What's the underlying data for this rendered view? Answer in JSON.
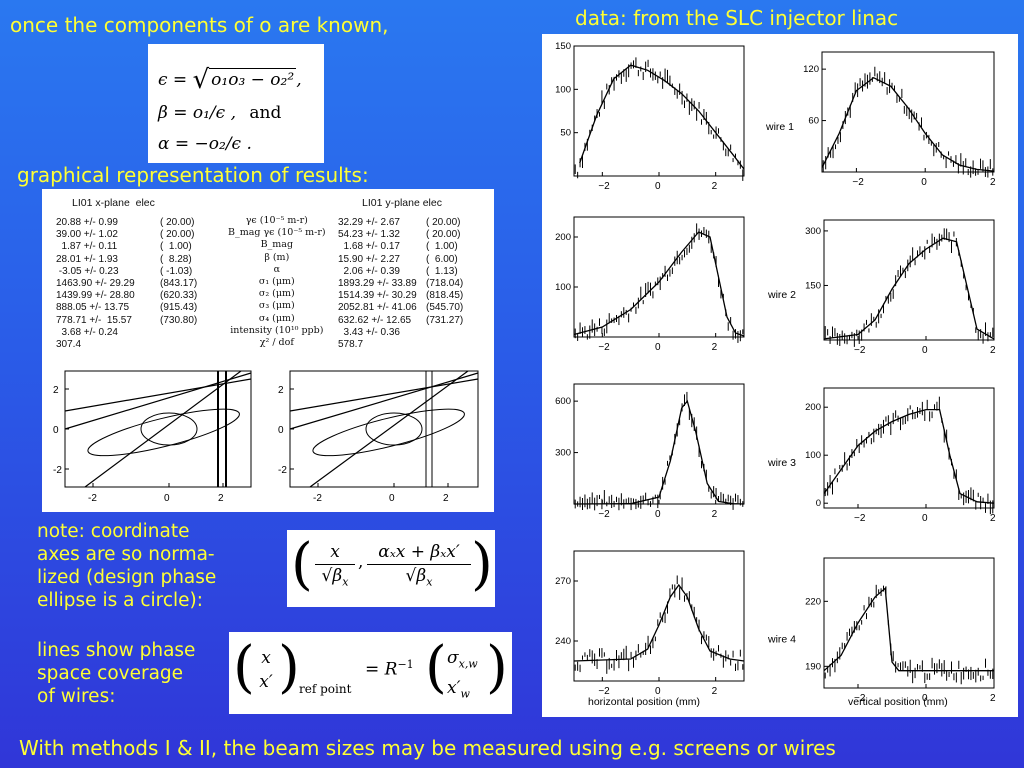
{
  "text": {
    "top_left": "once the components of o are known,",
    "top_right": "data: from the SLC injector linac",
    "graphical": "graphical representation of results:",
    "note": [
      "note: coordinate",
      "axes are so norma-",
      "lized (design phase",
      "ellipse is a circle):"
    ],
    "lines": [
      "lines show phase",
      "space coverage",
      "of wires:"
    ],
    "bottom": "With methods I & II, the beam sizes may be measured using e.g. screens or wires"
  },
  "equations": {
    "eps_lhs": "ϵ =",
    "eps_rad": "o₁o₃ − o₂²",
    "eps_end": ",",
    "beta": "β = o₁/ϵ ,",
    "and": "and",
    "alpha": "α = −o₂/ϵ .",
    "norm_x": "x",
    "norm_den1": "√β",
    "norm_num2": "αₓx + βₓx′",
    "norm_den2": "√β",
    "norm_sub": "x",
    "vec_top": "x",
    "vec_bot": "x′",
    "vec_sub": "ref point",
    "rhs": "= R",
    "rhs_exp": "−1",
    "vec2_top": "σ",
    "vec2_top_sub": "x,w",
    "vec2_bot": "x′",
    "vec2_bot_sub": "w"
  },
  "results": {
    "title_x": "LI01 x-plane  elec",
    "title_y": "LI01 y-plane elec",
    "x_values": "20.88 +/- 0.99\n39.00 +/- 1.02\n  1.87 +/- 0.11\n28.01 +/- 1.93\n -3.05 +/- 0.23\n1463.90 +/- 29.29\n1439.99 +/- 28.80\n888.05 +/- 13.75\n778.71 +/-  15.57\n  3.68 +/- 0.24\n307.4",
    "x_design": "( 20.00)\n( 20.00)\n(  1.00)\n(  8.28)\n( -1.03)\n(843.17)\n(620.33)\n(915.43)\n(730.80)",
    "y_values": "32.29 +/- 2.67\n54.23 +/- 1.32\n  1.68 +/- 0.17\n15.90 +/- 2.27\n  2.06 +/- 0.39\n1893.29 +/- 33.89\n1514.39 +/- 30.29\n2052.81 +/- 41.06\n632.62 +/- 12.65\n  3.43 +/- 0.36\n578.7",
    "y_design": "( 20.00)\n( 20.00)\n(  1.00)\n(  6.00)\n(  1.13)\n(718.04)\n(818.45)\n(545.70)\n(731.27)",
    "labels": "γϵ (10⁻⁵ m-r)\nB_mag γϵ (10⁻⁵ m-r)\nB_mag\nβ (m)\nα\nσ₁ (μm)\nσ₂ (μm)\nσ₃ (μm)\nσ₄ (μm)\nintensity (10¹⁰ ppb)\nχ² / dof"
  },
  "phase_ticks": {
    "y": [
      "2",
      "0",
      "-2"
    ],
    "x": [
      "-2",
      "0",
      "2"
    ]
  },
  "chart_data": [
    {
      "type": "scatter",
      "name": "wire 1 horizontal",
      "label": "",
      "x_ticks": [
        "-2",
        "0",
        "2"
      ],
      "y_ticks": [
        "150",
        "100",
        "50"
      ],
      "xlim": [
        -3,
        3
      ],
      "ylim": [
        0,
        150
      ],
      "fit": [
        [
          -2.8,
          15
        ],
        [
          -2.2,
          70
        ],
        [
          -1.6,
          112
        ],
        [
          -1.0,
          128
        ],
        [
          -0.4,
          122
        ],
        [
          0.2,
          110
        ],
        [
          0.8,
          95
        ],
        [
          1.4,
          75
        ],
        [
          2.0,
          50
        ],
        [
          2.6,
          25
        ],
        [
          3.0,
          8
        ]
      ]
    },
    {
      "type": "scatter",
      "name": "wire 1 vertical",
      "label": "wire 1",
      "x_ticks": [
        "-2",
        "0",
        "2"
      ],
      "y_ticks": [
        "120",
        "60"
      ],
      "xlim": [
        -3,
        2
      ],
      "ylim": [
        0,
        140
      ],
      "fit": [
        [
          -3.0,
          5
        ],
        [
          -2.5,
          45
        ],
        [
          -2.0,
          95
        ],
        [
          -1.5,
          110
        ],
        [
          -1.0,
          100
        ],
        [
          -0.5,
          75
        ],
        [
          0.0,
          45
        ],
        [
          0.5,
          20
        ],
        [
          1.0,
          8
        ],
        [
          1.5,
          3
        ],
        [
          2.0,
          1
        ]
      ]
    },
    {
      "type": "scatter",
      "name": "wire 2 horizontal",
      "label": "",
      "x_ticks": [
        "-2",
        "0",
        "2"
      ],
      "y_ticks": [
        "200",
        "100"
      ],
      "xlim": [
        -3,
        3
      ],
      "ylim": [
        0,
        240
      ],
      "fit": [
        [
          -3.0,
          5
        ],
        [
          -2.0,
          20
        ],
        [
          -1.0,
          55
        ],
        [
          0.0,
          110
        ],
        [
          0.8,
          170
        ],
        [
          1.4,
          210
        ],
        [
          1.8,
          200
        ],
        [
          2.1,
          120
        ],
        [
          2.4,
          40
        ],
        [
          2.7,
          8
        ],
        [
          3.0,
          2
        ]
      ]
    },
    {
      "type": "scatter",
      "name": "wire 2 vertical",
      "label": "wire 2",
      "x_ticks": [
        "-2",
        "0",
        "2"
      ],
      "y_ticks": [
        "300",
        "150"
      ],
      "xlim": [
        -3,
        2
      ],
      "ylim": [
        0,
        330
      ],
      "fit": [
        [
          -3.0,
          3
        ],
        [
          -2.0,
          15
        ],
        [
          -1.5,
          55
        ],
        [
          -1.0,
          140
        ],
        [
          -0.5,
          210
        ],
        [
          0.0,
          250
        ],
        [
          0.5,
          280
        ],
        [
          0.9,
          270
        ],
        [
          1.2,
          150
        ],
        [
          1.5,
          30
        ],
        [
          2.0,
          3
        ]
      ]
    },
    {
      "type": "scatter",
      "name": "wire 3 horizontal",
      "label": "",
      "x_ticks": [
        "-2",
        "0",
        "2"
      ],
      "y_ticks": [
        "600",
        "300"
      ],
      "xlim": [
        -3,
        3
      ],
      "ylim": [
        0,
        700
      ],
      "fit": [
        [
          -3.0,
          0
        ],
        [
          -1.0,
          2
        ],
        [
          0.0,
          40
        ],
        [
          0.4,
          250
        ],
        [
          0.8,
          560
        ],
        [
          1.0,
          600
        ],
        [
          1.3,
          420
        ],
        [
          1.7,
          120
        ],
        [
          2.1,
          15
        ],
        [
          2.6,
          2
        ],
        [
          3.0,
          0
        ]
      ]
    },
    {
      "type": "scatter",
      "name": "wire 3 vertical",
      "label": "wire 3",
      "x_ticks": [
        "-2",
        "0",
        "2"
      ],
      "y_ticks": [
        "200",
        "100",
        "0"
      ],
      "xlim": [
        -3,
        2
      ],
      "ylim": [
        -10,
        240
      ],
      "fit": [
        [
          -3.0,
          20
        ],
        [
          -2.5,
          70
        ],
        [
          -2.0,
          120
        ],
        [
          -1.5,
          150
        ],
        [
          -1.0,
          170
        ],
        [
          -0.5,
          185
        ],
        [
          0.0,
          195
        ],
        [
          0.4,
          195
        ],
        [
          0.7,
          100
        ],
        [
          1.0,
          20
        ],
        [
          1.5,
          3
        ],
        [
          2.0,
          0
        ]
      ]
    },
    {
      "type": "scatter",
      "name": "wire 4 horizontal",
      "label": "",
      "x_ticks": [
        "-2",
        "0",
        "2"
      ],
      "y_ticks": [
        "270",
        "240"
      ],
      "xlim": [
        -3,
        3
      ],
      "ylim": [
        220,
        285
      ],
      "fit": [
        [
          -3.0,
          230
        ],
        [
          -1.0,
          231
        ],
        [
          -0.4,
          236
        ],
        [
          0.0,
          248
        ],
        [
          0.4,
          262
        ],
        [
          0.7,
          268
        ],
        [
          1.0,
          262
        ],
        [
          1.4,
          246
        ],
        [
          1.8,
          235
        ],
        [
          2.5,
          231
        ],
        [
          3.0,
          230
        ]
      ]
    },
    {
      "type": "scatter",
      "name": "wire 4 vertical",
      "label": "wire 4",
      "x_ticks": [
        "-2",
        "0",
        "2"
      ],
      "y_ticks": [
        "220",
        "190"
      ],
      "xlim": [
        -3,
        2
      ],
      "ylim": [
        180,
        240
      ],
      "fit": [
        [
          -3.0,
          188
        ],
        [
          -2.5,
          195
        ],
        [
          -2.0,
          210
        ],
        [
          -1.5,
          222
        ],
        [
          -1.2,
          226
        ],
        [
          -1.0,
          192
        ],
        [
          -0.8,
          188
        ],
        [
          0.0,
          188
        ],
        [
          1.0,
          188
        ],
        [
          2.0,
          188
        ]
      ]
    }
  ],
  "axis_titles": {
    "horizontal": "horizontal position (mm)",
    "vertical": "vertical position (mm)"
  }
}
